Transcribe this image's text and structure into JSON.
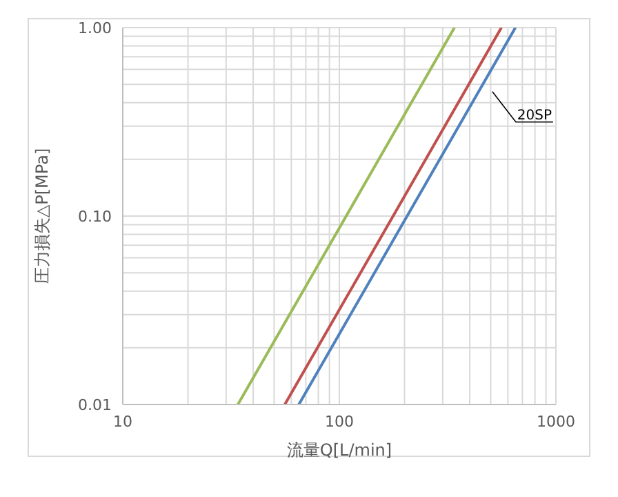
{
  "chart_data": {
    "type": "line",
    "xlabel": "流量Q[L/min]",
    "ylabel": "圧力損失△P[MPa]",
    "log": "xy",
    "grid": true,
    "marker": "none",
    "line_style": "solid",
    "xlim": [
      10,
      1000
    ],
    "xticks": [
      10,
      {
        "value": 20,
        "label": null
      },
      {
        "value": 30,
        "label": null
      },
      {
        "value": 40,
        "label": null
      },
      {
        "value": 50,
        "label": null
      },
      {
        "value": 60,
        "label": null
      },
      {
        "value": 70,
        "label": null
      },
      {
        "value": 80,
        "label": null
      },
      {
        "value": 90,
        "label": null
      },
      100,
      {
        "value": 200,
        "label": null
      },
      {
        "value": 300,
        "label": null
      },
      {
        "value": 400,
        "label": null
      },
      {
        "value": 500,
        "label": null
      },
      {
        "value": 600,
        "label": null
      },
      {
        "value": 700,
        "label": null
      },
      {
        "value": 800,
        "label": null
      },
      {
        "value": 900,
        "label": null
      },
      1000
    ],
    "ylim": [
      0.01,
      1
    ],
    "yticks": [
      0.01,
      {
        "value": 0.02,
        "label": null
      },
      {
        "value": 0.03,
        "label": null
      },
      {
        "value": 0.04,
        "label": null
      },
      {
        "value": 0.05,
        "label": null
      },
      {
        "value": 0.06,
        "label": null
      },
      {
        "value": 0.07,
        "label": null
      },
      {
        "value": 0.08,
        "label": null
      },
      {
        "value": 0.09,
        "label": null
      },
      {
        "value": 0.1,
        "label": "0.10"
      },
      {
        "value": 0.2,
        "label": null
      },
      {
        "value": 0.3,
        "label": null
      },
      {
        "value": 0.4,
        "label": null
      },
      {
        "value": 0.5,
        "label": null
      },
      {
        "value": 0.6,
        "label": null
      },
      {
        "value": 0.7,
        "label": null
      },
      {
        "value": 0.8,
        "label": null
      },
      {
        "value": 0.9,
        "label": null
      },
      {
        "value": 1,
        "label": "1.00"
      }
    ],
    "series": [
      {
        "color": "#9bbb59",
        "x": [
          34,
          340
        ],
        "values": [
          0.01,
          1
        ]
      },
      {
        "color": "#c0504d",
        "x": [
          56,
          560
        ],
        "values": [
          0.01,
          1
        ]
      },
      {
        "name": "20SP",
        "color": "#4f81bd",
        "x": [
          65,
          650
        ],
        "values": [
          0.01,
          1
        ]
      }
    ]
  }
}
